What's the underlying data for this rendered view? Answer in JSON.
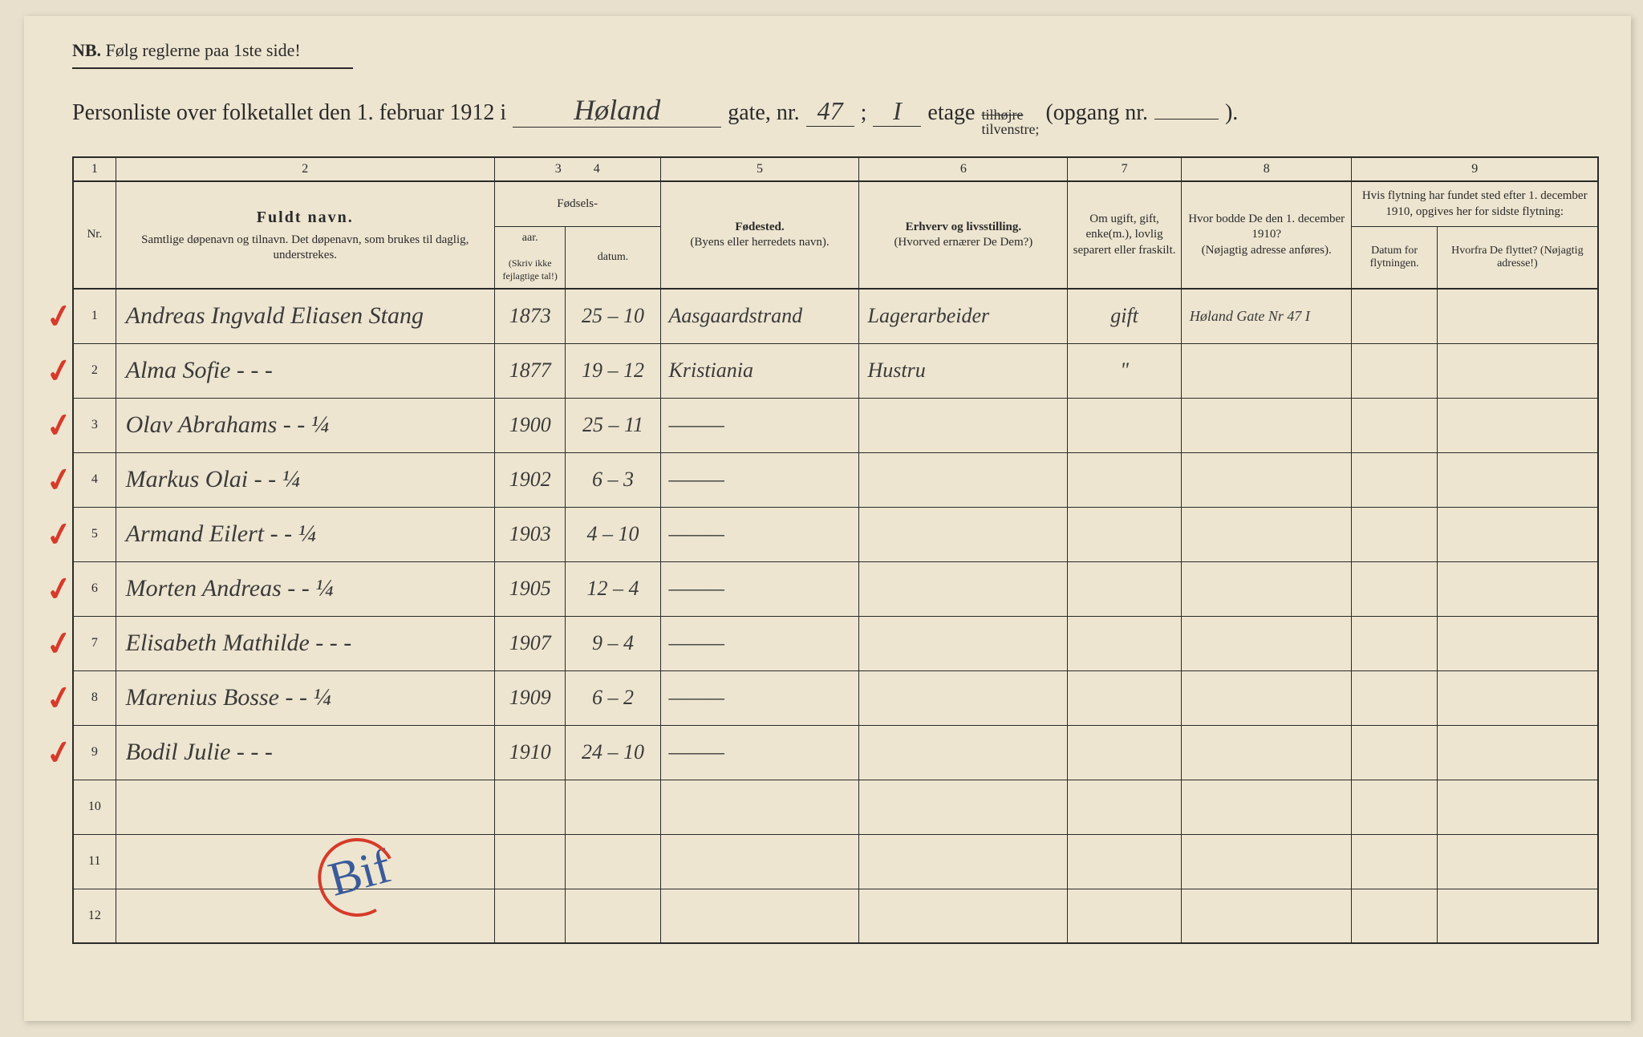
{
  "nb": {
    "prefix": "NB.",
    "text": "Følg reglerne paa 1ste side!"
  },
  "title": {
    "lead": "Personliste over folketallet den 1. februar 1912 i",
    "street": "Høland",
    "gate_label": "gate, nr.",
    "gate_nr": "47",
    "etage_val": "I",
    "etage_label": "etage",
    "side_strike": "tilhøjre",
    "side_keep": "tilvenstre;",
    "opgang": "(opgang nr.",
    "opgang_val": "",
    "close": ")."
  },
  "colnums": [
    "1",
    "2",
    "3",
    "4",
    "5",
    "6",
    "7",
    "8",
    "9"
  ],
  "headers": {
    "nr": "Nr.",
    "name_main": "Fuldt navn.",
    "name_sub": "Samtlige døpenavn og tilnavn. Det døpenavn, som brukes til daglig, understrekes.",
    "birth_group": "Fødsels-",
    "year": "aar.",
    "date": "datum.",
    "birth_note": "(Skriv ikke fejlagtige tal!)",
    "place_main": "Fødested.",
    "place_sub": "(Byens eller herredets navn).",
    "occ_main": "Erhverv og livsstilling.",
    "occ_sub": "(Hvorved ernærer De Dem?)",
    "status": "Om ugift, gift, enke(m.), lovlig separert eller fraskilt.",
    "addr_main": "Hvor bodde De den 1. december 1910?",
    "addr_sub": "(Nøjagtig adresse anføres).",
    "moved_main": "Hvis flytning har fundet sted efter 1. december 1910, opgives her for sidste flytning:",
    "moved_date": "Datum for flytningen.",
    "moved_from": "Hvorfra De flyttet? (Nøjagtig adresse!)"
  },
  "rows": [
    {
      "nr": "1",
      "chk": true,
      "name": "Andreas Ingvald Eliasen Stang",
      "year": "1873",
      "date": "25 – 10",
      "place": "Aasgaardstrand",
      "occ": "Lagerarbeider",
      "status": "gift",
      "addr": "Høland Gate Nr 47 I",
      "md": "",
      "mf": ""
    },
    {
      "nr": "2",
      "chk": true,
      "name": "Alma Sofie          - - -",
      "year": "1877",
      "date": "19 – 12",
      "place": "Kristiania",
      "occ": "Hustru",
      "status": "\"",
      "addr": "",
      "md": "",
      "mf": ""
    },
    {
      "nr": "3",
      "chk": true,
      "name": "Olav Abrahams       - - ¼",
      "year": "1900",
      "date": "25 – 11",
      "place": "———",
      "occ": "",
      "status": "",
      "addr": "",
      "md": "",
      "mf": ""
    },
    {
      "nr": "4",
      "chk": true,
      "name": "Markus Olai         - - ¼",
      "year": "1902",
      "date": "6 – 3",
      "place": "———",
      "occ": "",
      "status": "",
      "addr": "",
      "md": "",
      "mf": ""
    },
    {
      "nr": "5",
      "chk": true,
      "name": "Armand Eilert       - - ¼",
      "year": "1903",
      "date": "4 – 10",
      "place": "———",
      "occ": "",
      "status": "",
      "addr": "",
      "md": "",
      "mf": ""
    },
    {
      "nr": "6",
      "chk": true,
      "name": "Morten Andreas      - - ¼",
      "year": "1905",
      "date": "12 – 4",
      "place": "———",
      "occ": "",
      "status": "",
      "addr": "",
      "md": "",
      "mf": ""
    },
    {
      "nr": "7",
      "chk": true,
      "name": "Elisabeth Mathilde  - - -",
      "year": "1907",
      "date": "9 – 4",
      "place": "———",
      "occ": "",
      "status": "",
      "addr": "",
      "md": "",
      "mf": ""
    },
    {
      "nr": "8",
      "chk": true,
      "name": "Marenius Bosse      - - ¼",
      "year": "1909",
      "date": "6 – 2",
      "place": "———",
      "occ": "",
      "status": "",
      "addr": "",
      "md": "",
      "mf": ""
    },
    {
      "nr": "9",
      "chk": true,
      "name": "Bodil Julie         - - -",
      "year": "1910",
      "date": "24 – 10",
      "place": "———",
      "occ": "",
      "status": "",
      "addr": "",
      "md": "",
      "mf": ""
    },
    {
      "nr": "10",
      "chk": false,
      "name": "",
      "year": "",
      "date": "",
      "place": "",
      "occ": "",
      "status": "",
      "addr": "",
      "md": "",
      "mf": ""
    },
    {
      "nr": "11",
      "chk": false,
      "name": "",
      "year": "",
      "date": "",
      "place": "",
      "occ": "",
      "status": "",
      "addr": "",
      "md": "",
      "mf": ""
    },
    {
      "nr": "12",
      "chk": false,
      "name": "",
      "year": "",
      "date": "",
      "place": "",
      "occ": "",
      "status": "",
      "addr": "",
      "md": "",
      "mf": ""
    }
  ],
  "stamp": "Bif"
}
